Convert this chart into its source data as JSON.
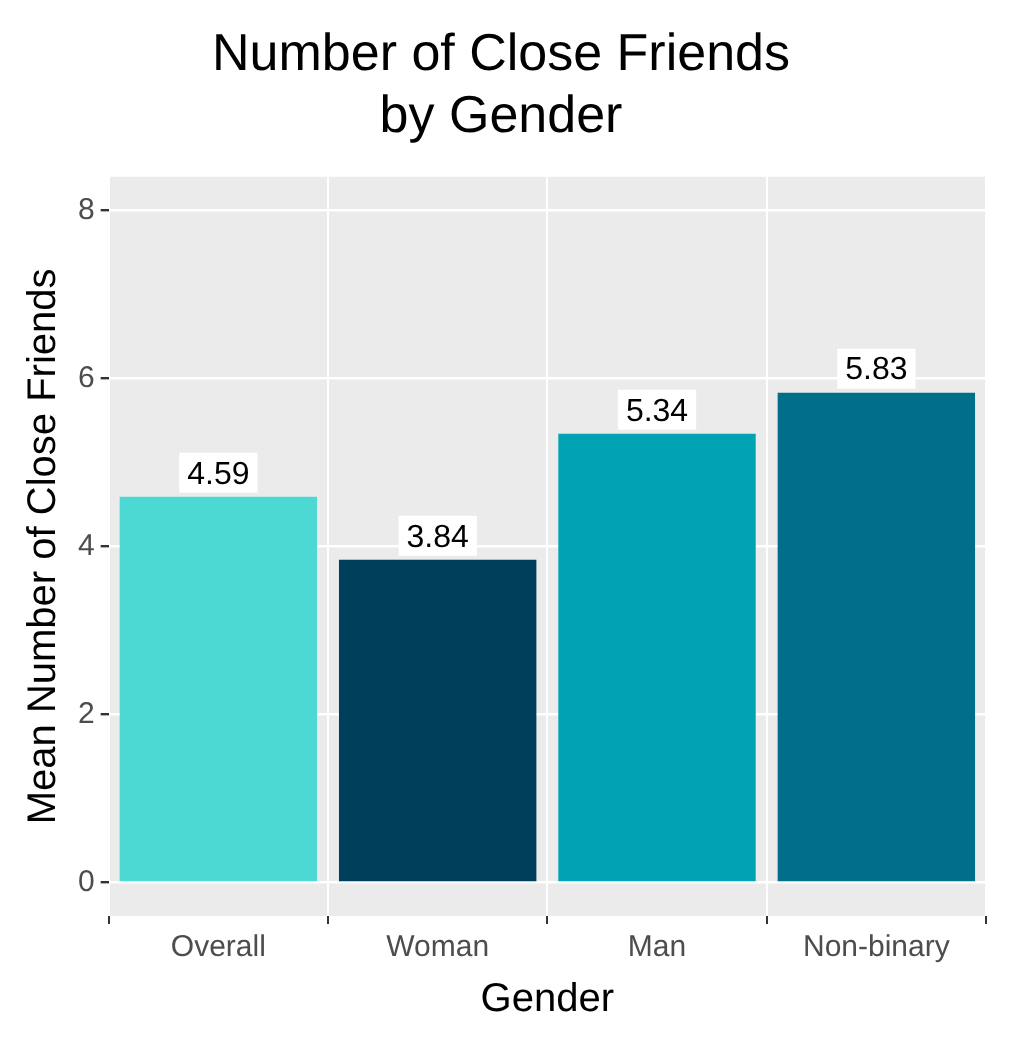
{
  "chart_data": {
    "type": "bar",
    "title": "Number of Close Friends\nby Gender",
    "xlabel": "Gender",
    "ylabel": "Mean Number of Close Friends",
    "categories": [
      "Overall",
      "Woman",
      "Man",
      "Non-binary"
    ],
    "values": [
      4.59,
      3.84,
      5.34,
      5.83
    ],
    "colors": [
      "#4dd9d3",
      "#003f5c",
      "#00a3b4",
      "#006f8a"
    ],
    "ylim": [
      -0.4,
      8.4
    ],
    "yticks": [
      0,
      2,
      4,
      6,
      8
    ],
    "grid": true,
    "data_labels": true,
    "legend": false
  }
}
